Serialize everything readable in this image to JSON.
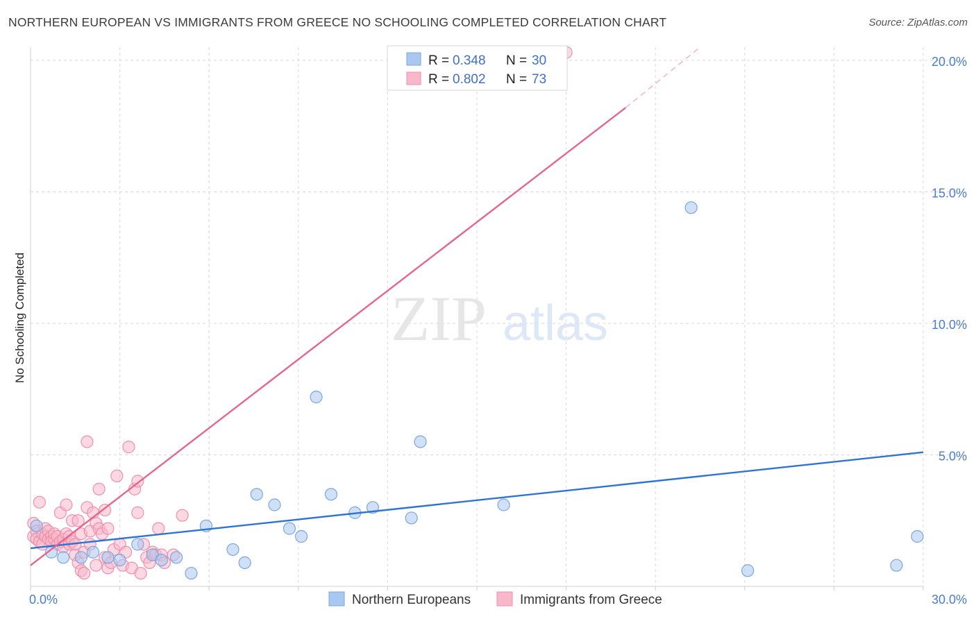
{
  "title": "NORTHERN EUROPEAN VS IMMIGRANTS FROM GREECE NO SCHOOLING COMPLETED CORRELATION CHART",
  "source": "Source: ZipAtlas.com",
  "watermark": {
    "zip": "ZIP",
    "atlas": "atlas"
  },
  "colors": {
    "blue_fill": "#a9c8f0",
    "blue_stroke": "#7aa6df",
    "blue_line": "#2f74d0",
    "pink_fill": "#f7b8ca",
    "pink_stroke": "#ef8fab",
    "pink_line": "#e36590",
    "grid": "#d8d8d8",
    "axis_text": "#4a7cc9"
  },
  "legend": {
    "r_label": "R =",
    "n_label": "N =",
    "rows": [
      {
        "series": "blue",
        "r": "0.348",
        "n": "30"
      },
      {
        "series": "pink",
        "r": "0.802",
        "n": "73"
      }
    ]
  },
  "bottom_legend": [
    "Northern Europeans",
    "Immigrants from Greece"
  ],
  "chart_data": {
    "type": "scatter",
    "title": "NORTHERN EUROPEAN VS IMMIGRANTS FROM GREECE NO SCHOOLING COMPLETED CORRELATION CHART",
    "xlabel": "",
    "ylabel": "No Schooling Completed",
    "xlim": [
      0,
      30
    ],
    "ylim": [
      0,
      20.5
    ],
    "x_tick_labels": [
      "0.0%",
      "30.0%"
    ],
    "y_ticks": [
      5,
      10,
      15,
      20
    ],
    "y_tick_labels": [
      "5.0%",
      "10.0%",
      "15.0%",
      "20.0%"
    ],
    "grid": true,
    "series": [
      {
        "name": "Northern Europeans",
        "color": "blue",
        "points": [
          [
            0.2,
            2.3
          ],
          [
            0.7,
            1.3
          ],
          [
            1.1,
            1.1
          ],
          [
            1.7,
            1.1
          ],
          [
            2.1,
            1.3
          ],
          [
            2.6,
            1.1
          ],
          [
            3.0,
            1.0
          ],
          [
            3.6,
            1.6
          ],
          [
            4.1,
            1.2
          ],
          [
            4.4,
            1.0
          ],
          [
            4.9,
            1.1
          ],
          [
            5.4,
            0.5
          ],
          [
            5.9,
            2.3
          ],
          [
            6.8,
            1.4
          ],
          [
            7.2,
            0.9
          ],
          [
            7.6,
            3.5
          ],
          [
            8.2,
            3.1
          ],
          [
            8.7,
            2.2
          ],
          [
            9.1,
            1.9
          ],
          [
            9.6,
            7.2
          ],
          [
            10.1,
            3.5
          ],
          [
            10.9,
            2.8
          ],
          [
            11.5,
            3.0
          ],
          [
            12.8,
            2.6
          ],
          [
            13.1,
            5.5
          ],
          [
            15.9,
            3.1
          ],
          [
            22.2,
            14.4
          ],
          [
            24.1,
            0.6
          ],
          [
            29.1,
            0.8
          ],
          [
            29.8,
            1.9
          ]
        ],
        "trend": {
          "x0": 0,
          "y0": 1.45,
          "x1": 30,
          "y1": 5.1
        }
      },
      {
        "name": "Immigrants from Greece",
        "color": "pink",
        "points": [
          [
            0.1,
            2.4
          ],
          [
            0.1,
            1.9
          ],
          [
            0.2,
            2.1
          ],
          [
            0.2,
            1.8
          ],
          [
            0.3,
            3.2
          ],
          [
            0.3,
            1.7
          ],
          [
            0.4,
            2.0
          ],
          [
            0.4,
            1.6
          ],
          [
            0.5,
            2.2
          ],
          [
            0.5,
            1.9
          ],
          [
            0.6,
            1.8
          ],
          [
            0.6,
            2.1
          ],
          [
            0.7,
            1.9
          ],
          [
            0.7,
            1.7
          ],
          [
            0.8,
            1.8
          ],
          [
            0.8,
            2.0
          ],
          [
            0.9,
            1.6
          ],
          [
            0.9,
            1.9
          ],
          [
            1.0,
            1.7
          ],
          [
            1.0,
            2.8
          ],
          [
            1.1,
            1.8
          ],
          [
            1.1,
            1.5
          ],
          [
            1.2,
            2.0
          ],
          [
            1.2,
            3.1
          ],
          [
            1.3,
            1.6
          ],
          [
            1.3,
            1.9
          ],
          [
            1.4,
            2.5
          ],
          [
            1.4,
            1.7
          ],
          [
            1.5,
            1.2
          ],
          [
            1.5,
            1.6
          ],
          [
            1.6,
            0.9
          ],
          [
            1.6,
            2.5
          ],
          [
            1.7,
            0.6
          ],
          [
            1.7,
            2.0
          ],
          [
            1.8,
            0.5
          ],
          [
            1.8,
            1.3
          ],
          [
            1.9,
            5.5
          ],
          [
            1.9,
            3.0
          ],
          [
            2.0,
            2.1
          ],
          [
            2.0,
            1.6
          ],
          [
            2.1,
            2.8
          ],
          [
            2.2,
            2.4
          ],
          [
            2.2,
            0.8
          ],
          [
            2.3,
            3.7
          ],
          [
            2.3,
            2.2
          ],
          [
            2.4,
            2.0
          ],
          [
            2.5,
            1.1
          ],
          [
            2.5,
            2.9
          ],
          [
            2.6,
            0.7
          ],
          [
            2.6,
            2.2
          ],
          [
            2.7,
            0.9
          ],
          [
            2.8,
            1.4
          ],
          [
            2.9,
            4.2
          ],
          [
            3.0,
            1.6
          ],
          [
            3.1,
            0.8
          ],
          [
            3.2,
            1.3
          ],
          [
            3.3,
            5.3
          ],
          [
            3.4,
            0.7
          ],
          [
            3.5,
            3.7
          ],
          [
            3.6,
            2.8
          ],
          [
            3.6,
            4.0
          ],
          [
            3.7,
            0.5
          ],
          [
            3.8,
            1.6
          ],
          [
            3.9,
            1.1
          ],
          [
            4.0,
            0.9
          ],
          [
            4.1,
            1.3
          ],
          [
            4.2,
            1.2
          ],
          [
            4.3,
            2.2
          ],
          [
            4.4,
            1.2
          ],
          [
            4.5,
            0.9
          ],
          [
            4.8,
            1.2
          ],
          [
            5.1,
            2.7
          ],
          [
            18.0,
            20.3
          ]
        ],
        "trend": {
          "x0": 0,
          "y0": 0.8,
          "x1": 20.0,
          "y1": 18.2,
          "dashed_to": {
            "x": 22.5,
            "y": 20.5
          }
        }
      }
    ]
  }
}
